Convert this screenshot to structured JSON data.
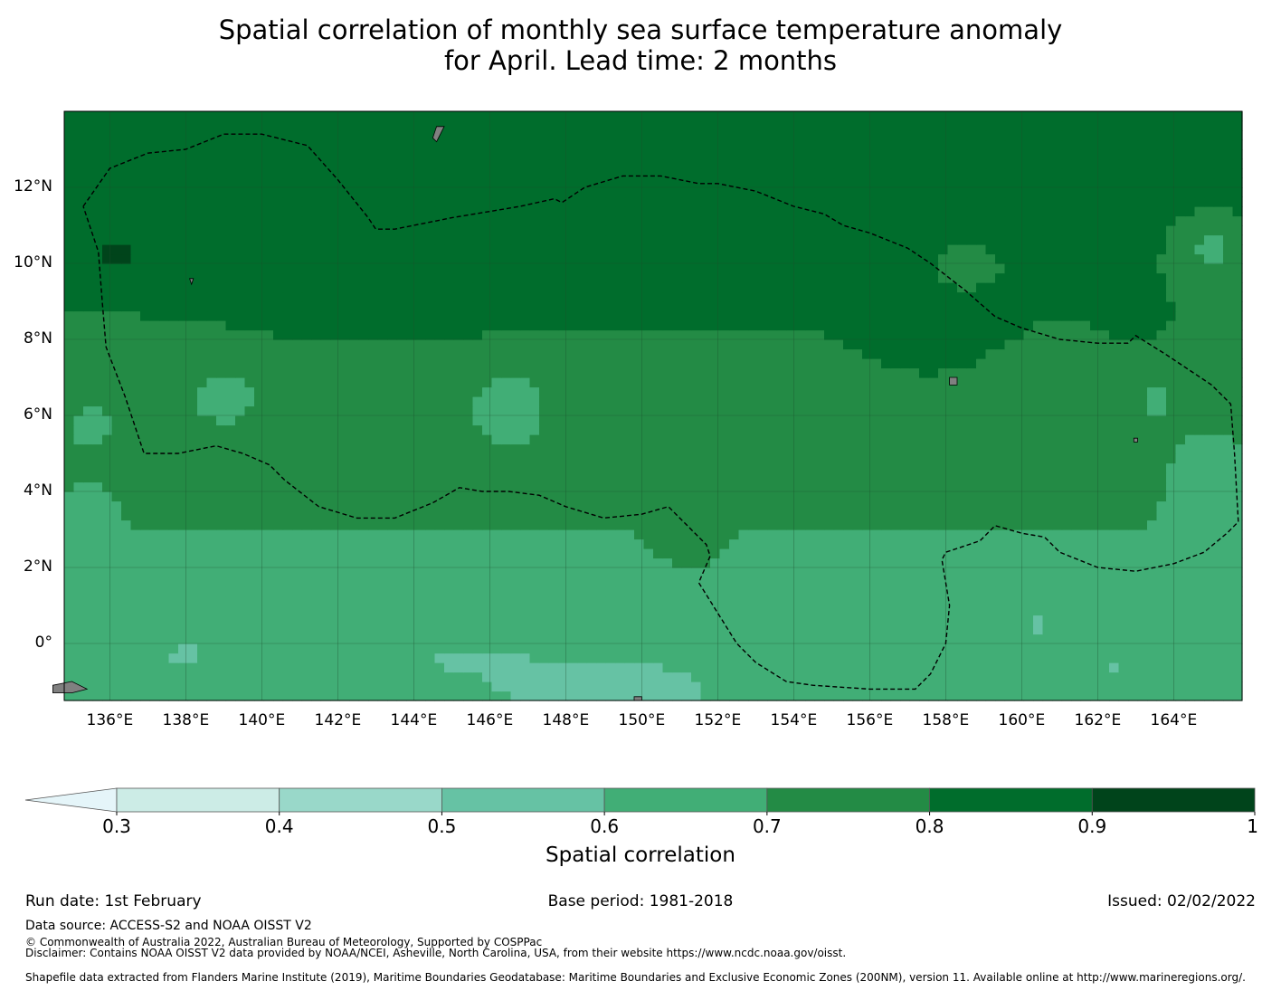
{
  "title": {
    "line1": "Spatial correlation of monthly sea surface temperature anomaly",
    "line2": "for April. Lead time: 2 months"
  },
  "map": {
    "extent": {
      "lon_min": 134.8,
      "lon_max": 165.8,
      "lat_min": -1.5,
      "lat_max": 14.0
    },
    "x_ticks": [
      {
        "lon": 136,
        "label": "136°E"
      },
      {
        "lon": 138,
        "label": "138°E"
      },
      {
        "lon": 140,
        "label": "140°E"
      },
      {
        "lon": 142,
        "label": "142°E"
      },
      {
        "lon": 144,
        "label": "144°E"
      },
      {
        "lon": 146,
        "label": "146°E"
      },
      {
        "lon": 148,
        "label": "148°E"
      },
      {
        "lon": 150,
        "label": "150°E"
      },
      {
        "lon": 152,
        "label": "152°E"
      },
      {
        "lon": 154,
        "label": "154°E"
      },
      {
        "lon": 156,
        "label": "156°E"
      },
      {
        "lon": 158,
        "label": "158°E"
      },
      {
        "lon": 160,
        "label": "160°E"
      },
      {
        "lon": 162,
        "label": "162°E"
      },
      {
        "lon": 164,
        "label": "164°E"
      }
    ],
    "y_ticks": [
      {
        "lat": 12,
        "label": "12°N"
      },
      {
        "lat": 10,
        "label": "10°N"
      },
      {
        "lat": 8,
        "label": "8°N"
      },
      {
        "lat": 6,
        "label": "6°N"
      },
      {
        "lat": 4,
        "label": "4°N"
      },
      {
        "lat": 2,
        "label": "2°N"
      },
      {
        "lat": 0,
        "label": "0°"
      }
    ],
    "eez_boundary": [
      [
        135.3,
        11.5
      ],
      [
        136.0,
        12.5
      ],
      [
        137.0,
        12.9
      ],
      [
        138.0,
        13.0
      ],
      [
        139.0,
        13.4
      ],
      [
        140.0,
        13.4
      ],
      [
        141.2,
        13.1
      ],
      [
        142.0,
        12.2
      ],
      [
        142.8,
        11.2
      ],
      [
        143.0,
        10.9
      ],
      [
        143.5,
        10.9
      ],
      [
        145.0,
        11.2
      ],
      [
        146.8,
        11.5
      ],
      [
        147.7,
        11.7
      ],
      [
        147.9,
        11.6
      ],
      [
        148.5,
        12.0
      ],
      [
        149.5,
        12.3
      ],
      [
        150.5,
        12.3
      ],
      [
        151.5,
        12.1
      ],
      [
        152.0,
        12.1
      ],
      [
        153.0,
        11.9
      ],
      [
        154.0,
        11.5
      ],
      [
        154.8,
        11.3
      ],
      [
        155.3,
        11.0
      ],
      [
        156.0,
        10.8
      ],
      [
        157.0,
        10.4
      ],
      [
        157.6,
        10.0
      ],
      [
        158.5,
        9.3
      ],
      [
        159.3,
        8.6
      ],
      [
        160.0,
        8.3
      ],
      [
        161.0,
        8.0
      ],
      [
        162.0,
        7.9
      ],
      [
        162.8,
        7.9
      ],
      [
        163.0,
        8.1
      ],
      [
        163.8,
        7.6
      ],
      [
        165.0,
        6.8
      ],
      [
        165.5,
        6.3
      ],
      [
        165.6,
        5.0
      ],
      [
        165.7,
        3.2
      ],
      [
        165.4,
        2.9
      ],
      [
        164.8,
        2.4
      ],
      [
        164.0,
        2.1
      ],
      [
        163.0,
        1.9
      ],
      [
        162.0,
        2.0
      ],
      [
        161.0,
        2.4
      ],
      [
        160.6,
        2.8
      ],
      [
        160.0,
        2.9
      ],
      [
        159.3,
        3.1
      ],
      [
        158.9,
        2.7
      ],
      [
        158.3,
        2.5
      ],
      [
        158.0,
        2.4
      ],
      [
        157.9,
        2.2
      ],
      [
        158.1,
        1.0
      ],
      [
        158.0,
        0.0
      ],
      [
        157.6,
        -0.8
      ],
      [
        157.2,
        -1.2
      ],
      [
        156.0,
        -1.2
      ],
      [
        154.5,
        -1.1
      ],
      [
        153.8,
        -1.0
      ],
      [
        153.0,
        -0.5
      ],
      [
        152.5,
        0.0
      ],
      [
        152.0,
        0.8
      ],
      [
        151.5,
        1.6
      ],
      [
        151.8,
        2.3
      ],
      [
        151.7,
        2.6
      ],
      [
        151.3,
        3.0
      ],
      [
        150.7,
        3.6
      ],
      [
        150.0,
        3.4
      ],
      [
        149.0,
        3.3
      ],
      [
        148.0,
        3.6
      ],
      [
        147.3,
        3.9
      ],
      [
        146.5,
        4.0
      ],
      [
        145.8,
        4.0
      ],
      [
        145.2,
        4.1
      ],
      [
        144.5,
        3.7
      ],
      [
        143.5,
        3.3
      ],
      [
        142.5,
        3.3
      ],
      [
        141.5,
        3.6
      ],
      [
        140.6,
        4.3
      ],
      [
        140.2,
        4.7
      ],
      [
        139.5,
        5.0
      ],
      [
        138.8,
        5.2
      ],
      [
        137.8,
        5.0
      ],
      [
        136.9,
        5.0
      ],
      [
        136.4,
        6.5
      ],
      [
        135.9,
        7.8
      ],
      [
        135.8,
        9.0
      ],
      [
        135.7,
        10.3
      ],
      [
        135.3,
        11.5
      ]
    ]
  },
  "colorbar": {
    "colors": [
      "#e5f5f9",
      "#ccece6",
      "#99d8c9",
      "#66c2a4",
      "#41ae76",
      "#238b45",
      "#006d2c",
      "#00441b"
    ],
    "ticks": [
      "0.3",
      "0.4",
      "0.5",
      "0.6",
      "0.7",
      "0.8",
      "0.9",
      "1"
    ],
    "label": "Spatial correlation"
  },
  "footer": {
    "run_date": "Run date: 1st February",
    "base_period": "Base period: 1981-2018",
    "issued": "Issued: 02/02/2022",
    "data_source": "Data source: ACCESS-S2 and NOAA OISST V2",
    "copyright": "© Commonwealth of Australia 2022, Australian Bureau of Meteorology, Supported by COSPPac",
    "disclaimer": "Disclaimer: Contains NOAA OISST V2 data provided by NOAA/NCEI, Asheville, North Carolina, USA, from their website https://www.ncdc.noaa.gov/oisst.",
    "shapefile": "Shapefile data extracted from Flanders Marine Institute (2019), Maritime Boundaries Geodatabase: Maritime Boundaries and Exclusive Economic Zones (200NM), version 11. Available online at http://www.marineregions.org/."
  }
}
